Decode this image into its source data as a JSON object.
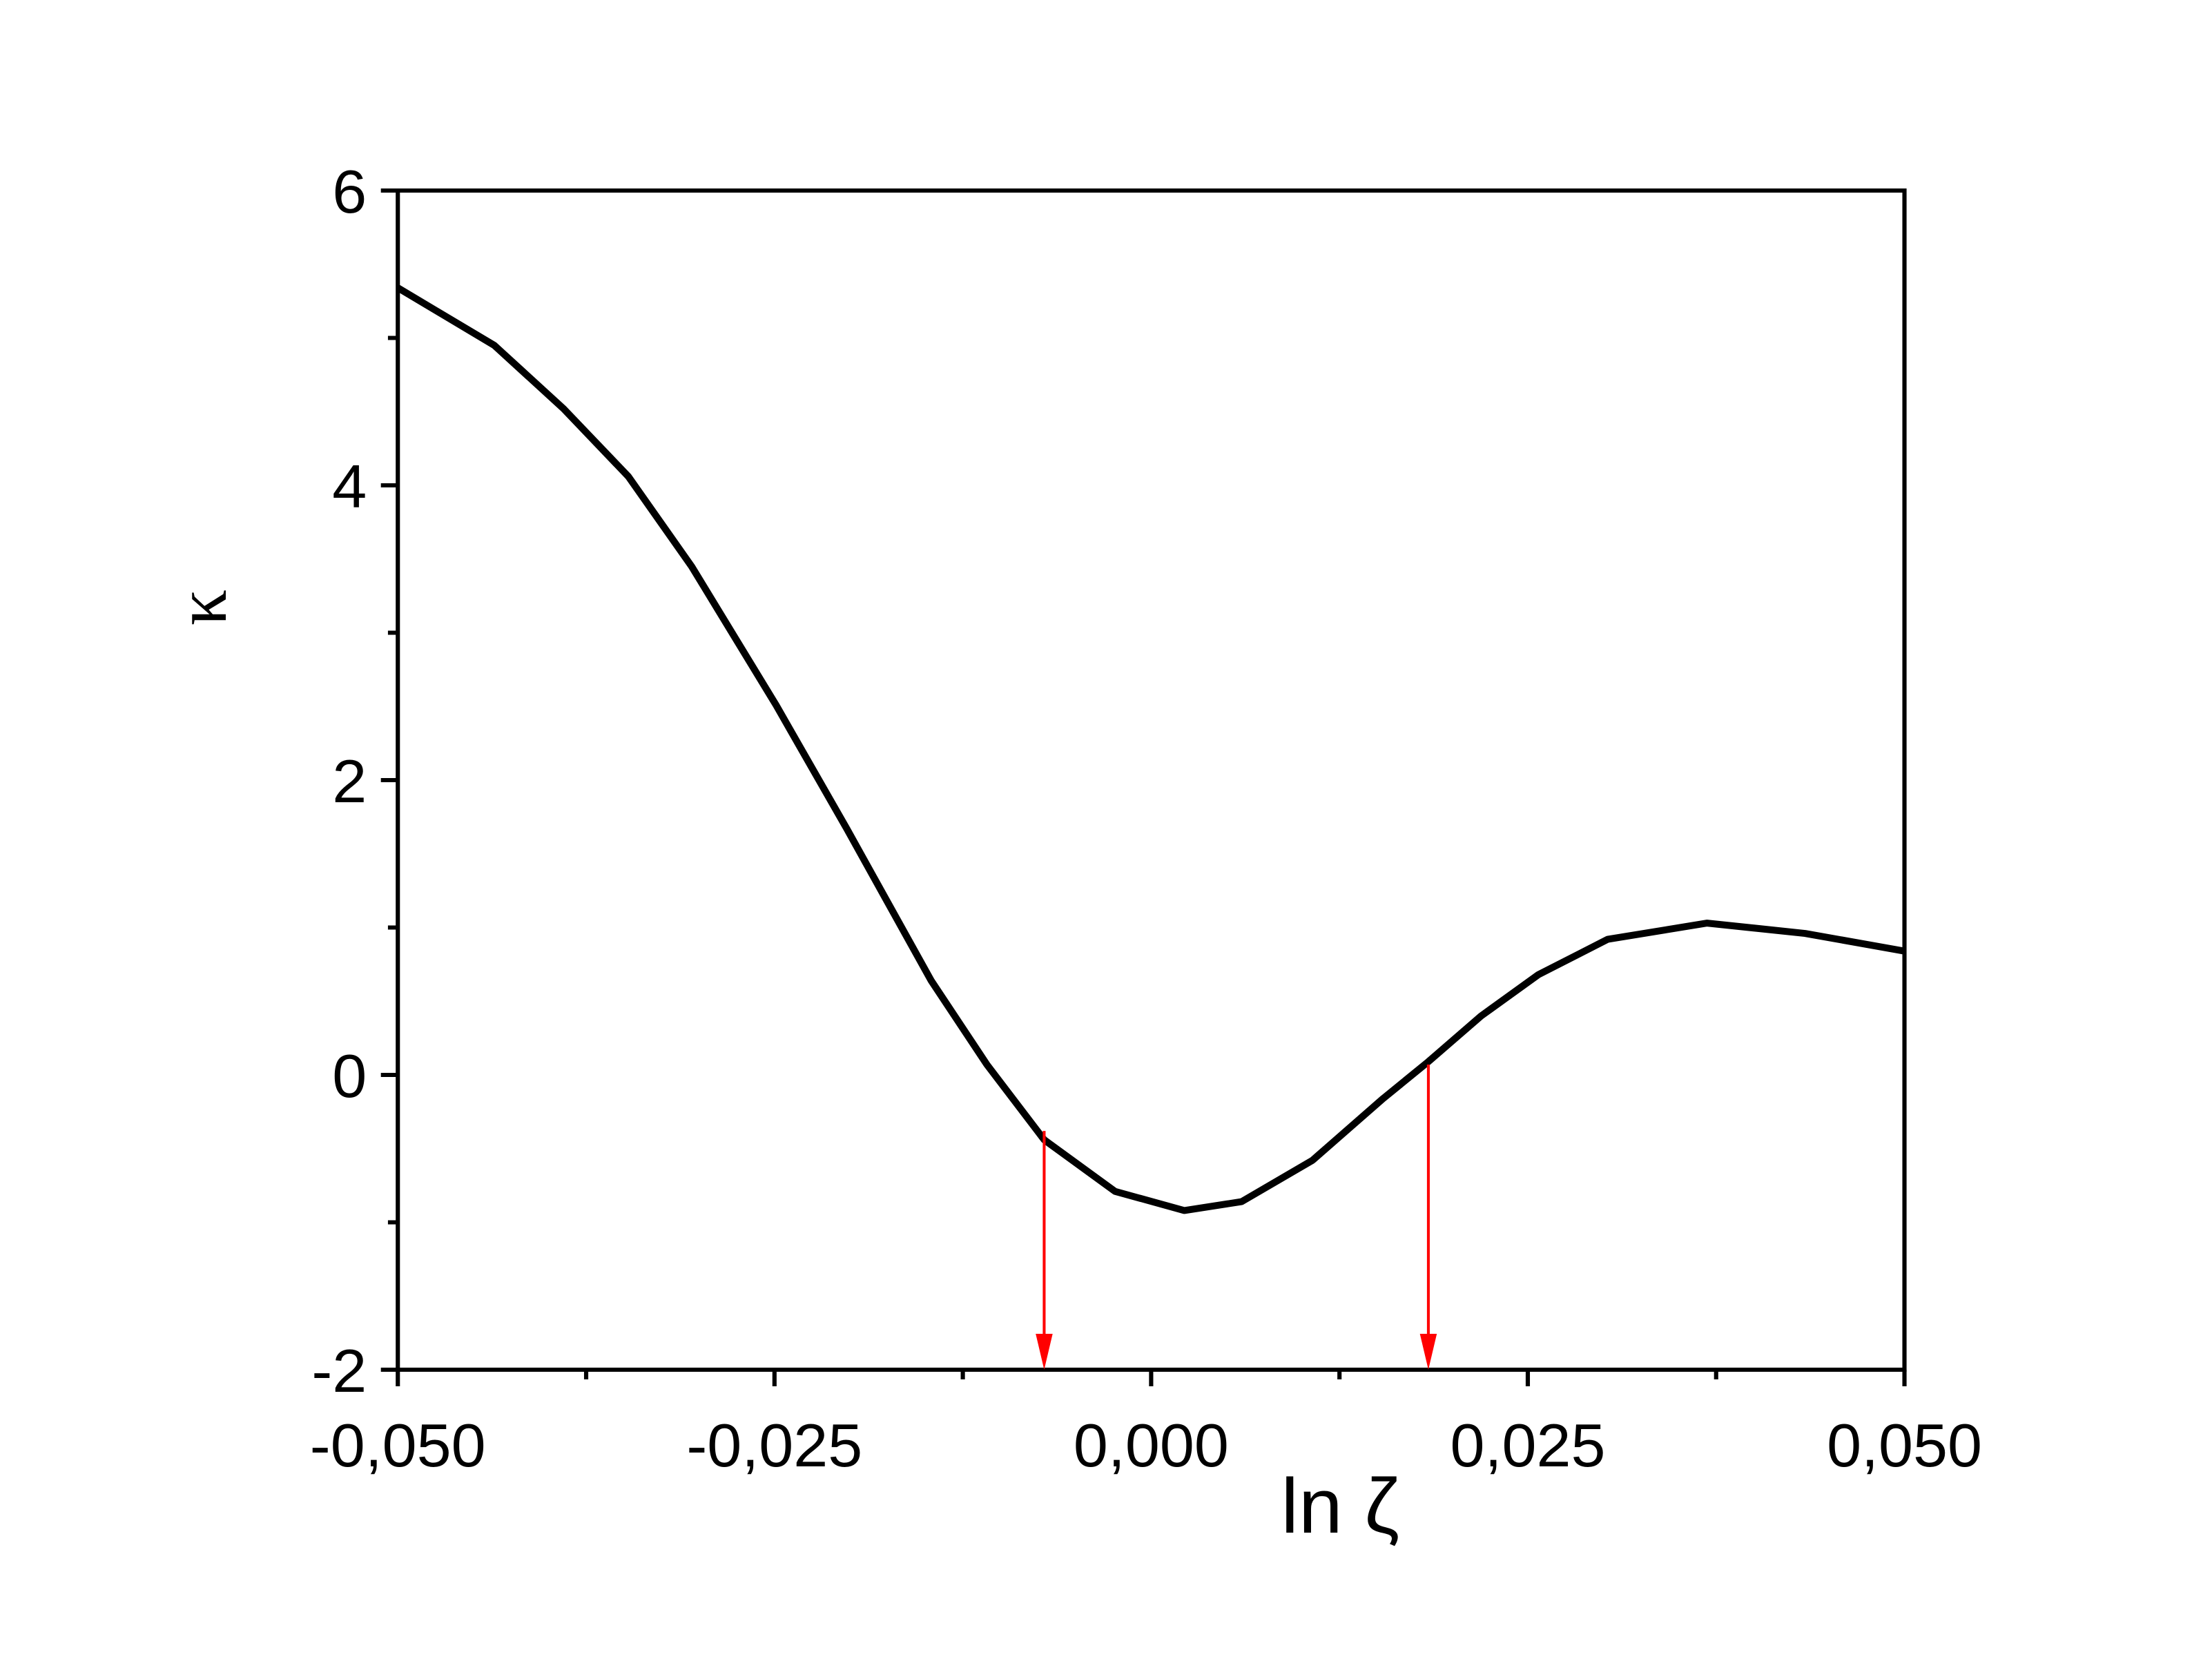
{
  "chart_data": {
    "type": "line",
    "x_label": "ln ζ",
    "y_label": "κ",
    "x": [
      -0.05,
      -0.0436,
      -0.039,
      -0.0347,
      -0.0305,
      -0.0249,
      -0.0202,
      -0.0146,
      -0.0109,
      -0.0071,
      -0.0024,
      0.0022,
      0.006,
      0.0107,
      0.0154,
      0.0184,
      0.0219,
      0.0257,
      0.0303,
      0.0369,
      0.0434,
      0.05
    ],
    "series": [
      {
        "color": "#000000",
        "values": [
          5.34,
          4.95,
          4.52,
          4.06,
          3.45,
          2.51,
          1.67,
          0.64,
          0.07,
          -0.44,
          -0.79,
          -0.92,
          -0.86,
          -0.58,
          -0.16,
          0.09,
          0.4,
          0.68,
          0.92,
          1.03,
          0.96,
          0.84
        ]
      }
    ],
    "arrows": [
      {
        "x": -0.0071,
        "y_start": -0.38,
        "color": "#ff0000"
      },
      {
        "x": 0.0184,
        "y_start": 0.07,
        "color": "#ff0000"
      }
    ],
    "xlim": [
      -0.05,
      0.05
    ],
    "xticks": [
      {
        "value": -0.05,
        "label": "-0,050"
      },
      {
        "value": -0.025,
        "label": "-0,025"
      },
      {
        "value": 0,
        "label": "0,000"
      },
      {
        "value": 0.025,
        "label": "0,025"
      },
      {
        "value": 0.05,
        "label": "0,050"
      }
    ],
    "xminorticks": [
      -0.0375,
      -0.0125,
      0.0125,
      0.0375
    ],
    "ylim": [
      -2,
      6
    ],
    "yticks": [
      -2,
      0,
      2,
      4,
      6
    ],
    "yminorticks": [
      -1,
      1,
      3,
      5
    ],
    "grid": false
  }
}
